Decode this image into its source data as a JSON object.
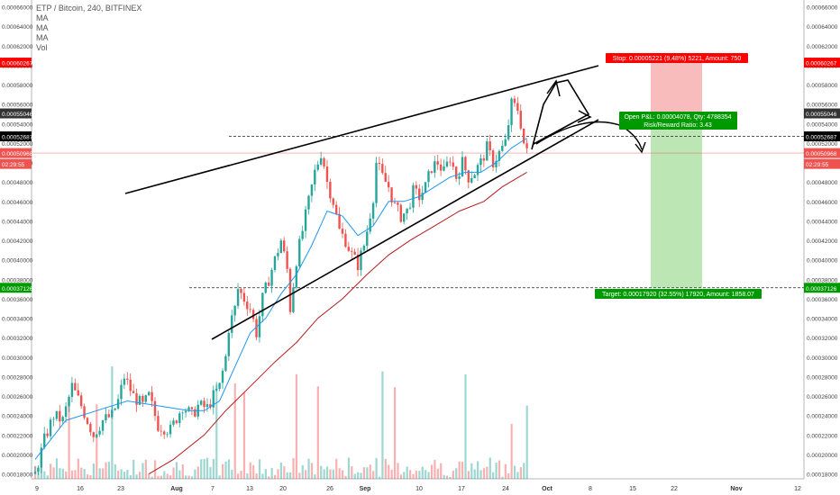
{
  "header": {
    "title": "ETP / Bitcoin, 240, BITFINEX",
    "indicators": [
      "MA",
      "MA",
      "MA",
      "Vol"
    ]
  },
  "colors": {
    "up": "#26a69a",
    "down": "#ef5350",
    "ma_fast": "#2196f3",
    "ma_slow": "#b71c1c",
    "stop_zone": "#f7a6a6",
    "target_zone": "#a5dd9b",
    "stop_label": "#ff0000",
    "target_label": "#009900"
  },
  "chart_data": {
    "type": "candlestick",
    "symbol": "ETP / Bitcoin",
    "timeframe": "240",
    "exchange": "BITFINEX",
    "ylim": [
      0.000175,
      0.000667
    ],
    "y_ticks": [
      "0.00066000",
      "0.00064000",
      "0.00062000",
      "0.00060000",
      "0.00058000",
      "0.00056000",
      "0.00054000",
      "0.00052000",
      "0.00050000",
      "0.00048000",
      "0.00046000",
      "0.00044000",
      "0.00042000",
      "0.00040000",
      "0.00038000",
      "0.00036000",
      "0.00034000",
      "0.00032000",
      "0.00030000",
      "0.00028000",
      "0.00026000",
      "0.00024000",
      "0.00022000",
      "0.00020000",
      "0.00018000"
    ],
    "x_labels": [
      "9",
      "16",
      "23",
      "Aug",
      "7",
      "13",
      "20",
      "26",
      "Sep",
      "10",
      "17",
      "24",
      "Oct",
      "8",
      "15",
      "22",
      "Nov",
      "12"
    ],
    "price_labels": {
      "stop": "0.00060267",
      "entry": "0.00055046",
      "level_dashed": "0.00052687",
      "last": "0.00050968",
      "countdown": "02:29:55",
      "target": "0.00037126"
    },
    "position": {
      "stop_text": "Stop: 0.00005221 (9.48%) 5221, Amount: 750",
      "open_text": "Open P&L: 0.00004078, Qty: 4788354",
      "rr_text": "Risk/Reward Ratio: 3.43",
      "target_text": "Target: 0.00017920 (32.55%) 17920, Amount: 1858.07"
    },
    "price_path": [
      [
        0,
        0.00018
      ],
      [
        3,
        0.000215
      ],
      [
        6,
        0.00024
      ],
      [
        9,
        0.000235
      ],
      [
        12,
        0.00027
      ],
      [
        15,
        0.00025
      ],
      [
        19,
        0.00022
      ],
      [
        22,
        0.000235
      ],
      [
        25,
        0.00024
      ],
      [
        27,
        0.000255
      ],
      [
        29,
        0.00028
      ],
      [
        32,
        0.00026
      ],
      [
        35,
        0.00025
      ],
      [
        37,
        0.00026
      ],
      [
        40,
        0.00023
      ],
      [
        44,
        0.000225
      ],
      [
        48,
        0.00025
      ],
      [
        51,
        0.00024
      ],
      [
        53,
        0.00025
      ],
      [
        56,
        0.000248
      ],
      [
        58,
        0.00026
      ],
      [
        60,
        0.00027
      ],
      [
        62,
        0.0003
      ],
      [
        63,
        0.00033
      ],
      [
        65,
        0.00035
      ],
      [
        66,
        0.00037
      ],
      [
        68,
        0.00036
      ],
      [
        70,
        0.00035
      ],
      [
        72,
        0.000325
      ],
      [
        74,
        0.00036
      ],
      [
        76,
        0.00038
      ],
      [
        78,
        0.0004
      ],
      [
        80,
        0.00042
      ],
      [
        82,
        0.00039
      ],
      [
        83,
        0.00035
      ],
      [
        85,
        0.0004
      ],
      [
        87,
        0.00043
      ],
      [
        89,
        0.00046
      ],
      [
        91,
        0.00049
      ],
      [
        93,
        0.00051
      ],
      [
        94,
        0.000498
      ],
      [
        95,
        0.00048
      ],
      [
        97,
        0.00046
      ],
      [
        99,
        0.00043
      ],
      [
        101,
        0.00042
      ],
      [
        103,
        0.000405
      ],
      [
        105,
        0.000395
      ],
      [
        107,
        0.000415
      ],
      [
        108,
        0.00043
      ],
      [
        110,
        0.000465
      ],
      [
        111,
        0.0005
      ],
      [
        113,
        0.000485
      ],
      [
        115,
        0.000475
      ],
      [
        117,
        0.000455
      ],
      [
        119,
        0.000445
      ],
      [
        121,
        0.00045
      ],
      [
        123,
        0.00047
      ],
      [
        125,
        0.000465
      ],
      [
        127,
        0.000475
      ],
      [
        129,
        0.000495
      ],
      [
        131,
        0.0005
      ],
      [
        133,
        0.00049
      ],
      [
        135,
        0.000505
      ],
      [
        137,
        0.000485
      ],
      [
        139,
        0.0005
      ],
      [
        141,
        0.000485
      ],
      [
        143,
        0.00049
      ],
      [
        145,
        0.0005
      ],
      [
        147,
        0.000515
      ],
      [
        149,
        0.0005
      ],
      [
        151,
        0.00051
      ],
      [
        153,
        0.00052
      ],
      [
        155,
        0.00056
      ],
      [
        157,
        0.000555
      ],
      [
        158,
        0.00054
      ],
      [
        159,
        0.00052
      ],
      [
        160,
        0.00051
      ]
    ],
    "ma_fast_path": [
      [
        0,
        0.000195
      ],
      [
        10,
        0.000235
      ],
      [
        20,
        0.000245
      ],
      [
        30,
        0.000255
      ],
      [
        40,
        0.00025
      ],
      [
        50,
        0.000245
      ],
      [
        55,
        0.000245
      ],
      [
        60,
        0.000255
      ],
      [
        65,
        0.00029
      ],
      [
        70,
        0.000325
      ],
      [
        75,
        0.00034
      ],
      [
        80,
        0.000365
      ],
      [
        85,
        0.000385
      ],
      [
        90,
        0.000415
      ],
      [
        95,
        0.00045
      ],
      [
        100,
        0.000445
      ],
      [
        105,
        0.000425
      ],
      [
        110,
        0.000435
      ],
      [
        115,
        0.00046
      ],
      [
        120,
        0.00046
      ],
      [
        125,
        0.000465
      ],
      [
        130,
        0.000475
      ],
      [
        135,
        0.000485
      ],
      [
        140,
        0.00049
      ],
      [
        145,
        0.00049
      ],
      [
        150,
        0.0005
      ],
      [
        155,
        0.000515
      ],
      [
        160,
        0.000525
      ]
    ],
    "ma_slow_path": [
      [
        37,
        0.00018
      ],
      [
        45,
        0.000195
      ],
      [
        55,
        0.00022
      ],
      [
        62,
        0.000245
      ],
      [
        70,
        0.00027
      ],
      [
        78,
        0.000295
      ],
      [
        85,
        0.000315
      ],
      [
        92,
        0.00034
      ],
      [
        100,
        0.00036
      ],
      [
        108,
        0.000385
      ],
      [
        115,
        0.000405
      ],
      [
        122,
        0.00042
      ],
      [
        130,
        0.000435
      ],
      [
        138,
        0.00045
      ],
      [
        146,
        0.00046
      ],
      [
        152,
        0.000475
      ],
      [
        160,
        0.00049
      ]
    ]
  }
}
